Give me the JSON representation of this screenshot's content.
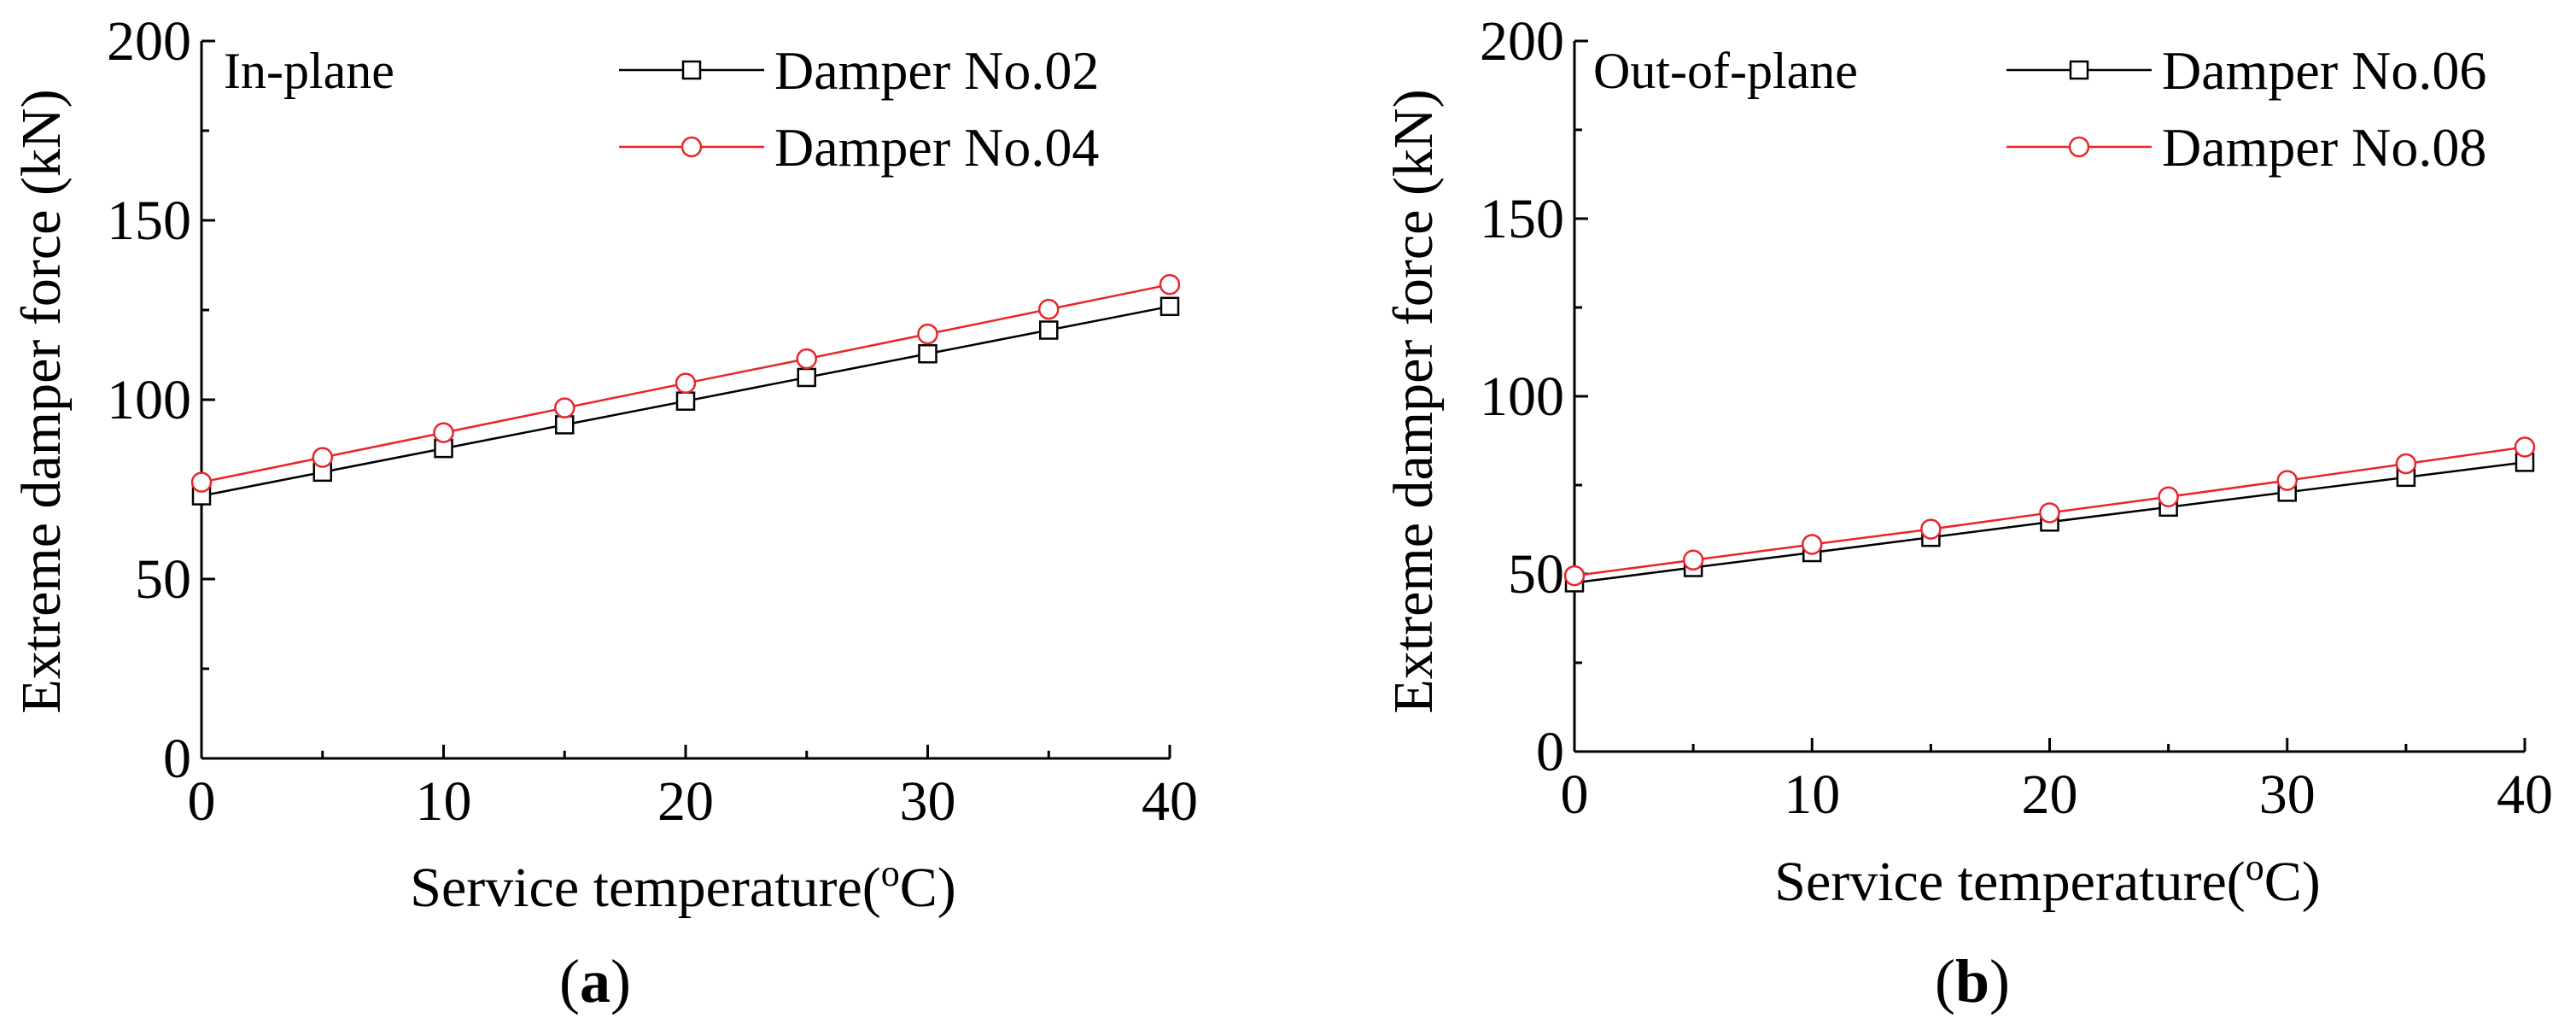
{
  "chart_data": [
    {
      "type": "line",
      "panel_label": "(a)",
      "panel_label_paren_open": "(",
      "panel_label_letter": "a",
      "panel_label_paren_close": ")",
      "annotation": "In-plane",
      "xlabel": "Service temperature(",
      "xlabel_superscript": "o",
      "xlabel_unit": "C)",
      "xlabel_full": "Service temperature(oC)",
      "ylabel": "Extreme damper force (kN)",
      "xlim": [
        0,
        40
      ],
      "ylim": [
        0,
        200
      ],
      "xticks": [
        0,
        10,
        20,
        30,
        40
      ],
      "yticks": [
        0,
        50,
        100,
        150,
        200
      ],
      "legend_position": "top-right",
      "series": [
        {
          "name": "Damper No.02",
          "color": "#000000",
          "marker": "square",
          "x": [
            0,
            5,
            10,
            15,
            20,
            25,
            30,
            35,
            40
          ],
          "values": [
            73.2,
            79.8,
            86.4,
            93.0,
            99.6,
            106.2,
            112.8,
            119.4,
            126.0
          ]
        },
        {
          "name": "Damper No.04",
          "color": "#e8262b",
          "marker": "circle",
          "x": [
            0,
            5,
            10,
            15,
            20,
            25,
            30,
            35,
            40
          ],
          "values": [
            77.0,
            83.9,
            90.8,
            97.7,
            104.6,
            111.4,
            118.3,
            125.2,
            132.1
          ]
        }
      ]
    },
    {
      "type": "line",
      "panel_label": "(b)",
      "panel_label_paren_open": "(",
      "panel_label_letter": "b",
      "panel_label_paren_close": ")",
      "annotation": "Out-of-plane",
      "xlabel": "Service temperature(",
      "xlabel_superscript": "o",
      "xlabel_unit": "C)",
      "xlabel_full": "Service temperature(oC)",
      "ylabel": "Extreme damper force (kN)",
      "xlim": [
        0,
        40
      ],
      "ylim": [
        0,
        200
      ],
      "xticks": [
        0,
        10,
        20,
        30,
        40
      ],
      "yticks": [
        0,
        50,
        100,
        150,
        200
      ],
      "legend_position": "top-right",
      "series": [
        {
          "name": "Damper No.06",
          "color": "#000000",
          "marker": "square",
          "x": [
            0,
            5,
            10,
            15,
            20,
            25,
            30,
            35,
            40
          ],
          "values": [
            47.5,
            51.8,
            56.0,
            60.3,
            64.6,
            68.8,
            73.0,
            77.2,
            81.4
          ]
        },
        {
          "name": "Damper No.08",
          "color": "#e8262b",
          "marker": "circle",
          "x": [
            0,
            5,
            10,
            15,
            20,
            25,
            30,
            35,
            40
          ],
          "values": [
            49.5,
            53.9,
            58.3,
            62.6,
            67.2,
            71.7,
            76.3,
            81.0,
            85.7
          ]
        }
      ]
    }
  ]
}
